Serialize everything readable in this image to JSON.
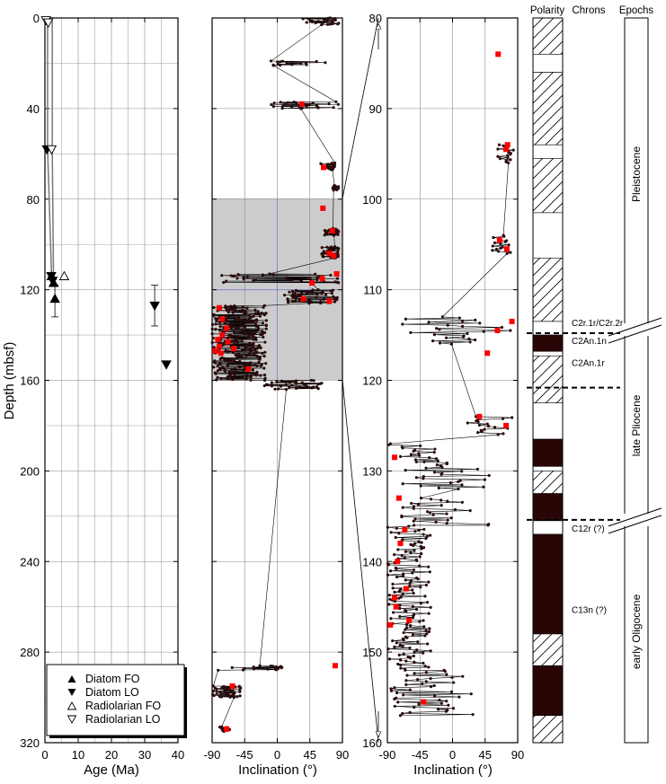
{
  "colors": {
    "data_point": "#2a0a0a",
    "highlight": "#ff0000",
    "shade": "#cccccc",
    "grid": "#888888",
    "shade_grid": "#8888cc",
    "normal_polarity": "#2a0505"
  },
  "chart_data": [
    {
      "type": "scatter",
      "xlabel": "Age (Ma)",
      "ylabel": "Depth (mbsf)",
      "xlim": [
        0,
        40
      ],
      "ylim": [
        320,
        0
      ],
      "x_ticks": [
        "0",
        "10",
        "20",
        "30",
        "40"
      ],
      "y_ticks": [
        "0",
        "40",
        "80",
        "120",
        "160",
        "200",
        "240",
        "280",
        "320"
      ],
      "grid": true,
      "legend_position": "bottom-left",
      "legend": [
        "Diatom FO",
        "Diatom LO",
        "Radiolarian FO",
        "Radiolarian LO"
      ],
      "series": [
        {
          "name": "Diatom FO",
          "marker": "filled-up-triangle",
          "points": [
            {
              "x": 2.0,
              "y": 114
            },
            {
              "x": 2.6,
              "y": 117
            },
            {
              "x": 3.0,
              "y": 124,
              "y_err": [
                118,
                132
              ]
            }
          ]
        },
        {
          "name": "Diatom LO",
          "marker": "filled-down-triangle",
          "points": [
            {
              "x": 0.6,
              "y": 58
            },
            {
              "x": 1.9,
              "y": 114
            },
            {
              "x": 2.3,
              "y": 116
            },
            {
              "x": 33.0,
              "y": 127,
              "y_err": [
                118,
                136
              ]
            },
            {
              "x": 36.5,
              "y": 153
            }
          ]
        },
        {
          "name": "Radiolarian FO",
          "marker": "open-up-triangle",
          "points": [
            {
              "x": 5.8,
              "y": 114
            }
          ]
        },
        {
          "name": "Radiolarian LO",
          "marker": "open-down-triangle",
          "points": [
            {
              "x": 0.3,
              "y": 1
            },
            {
              "x": 1.0,
              "y": 2
            },
            {
              "x": 2.0,
              "y": 58
            }
          ]
        }
      ],
      "age_depth_line": [
        [
          0.8,
          0
        ],
        [
          0.8,
          58
        ],
        [
          2.0,
          114
        ],
        [
          2.6,
          117
        ],
        [
          2.2,
          58
        ],
        [
          2.2,
          0
        ]
      ]
    },
    {
      "type": "scatter",
      "xlabel": "Inclination (°)",
      "xlim": [
        -90,
        90
      ],
      "ylim": [
        320,
        0
      ],
      "x_ticks": [
        "-90",
        "-45",
        "0",
        "45",
        "90"
      ],
      "y_ticks": [
        "0",
        "40",
        "80",
        "120",
        "160",
        "200",
        "240",
        "280",
        "320"
      ],
      "shaded_depth_interval": [
        80,
        160
      ],
      "grid": true,
      "series": [
        {
          "name": "",
          "marker": "small-dot",
          "connected": true,
          "clusters": [
            {
              "depth": [
                0,
                3
              ],
              "incl": [
                35,
                85
              ]
            },
            {
              "depth": [
                19,
                21
              ],
              "incl": [
                -10,
                75
              ]
            },
            {
              "depth": [
                37,
                40
              ],
              "incl": [
                -15,
                85
              ]
            },
            {
              "depth": [
                64,
                67
              ],
              "incl": [
                60,
                80
              ]
            },
            {
              "depth": [
                74,
                76
              ],
              "incl": [
                75,
                85
              ]
            },
            {
              "depth": [
                93,
                96
              ],
              "incl": [
                65,
                85
              ]
            },
            {
              "depth": [
                101,
                106
              ],
              "incl": [
                60,
                85
              ]
            },
            {
              "depth": [
                113,
                117
              ],
              "incl": [
                -85,
                85
              ]
            },
            {
              "depth": [
                120,
                126
              ],
              "incl": [
                10,
                85
              ]
            },
            {
              "depth": [
                127,
                160
              ],
              "incl": [
                -90,
                -15
              ]
            },
            {
              "depth": [
                160,
                164
              ],
              "incl": [
                -20,
                65
              ]
            },
            {
              "depth": [
                286,
                288
              ],
              "incl": [
                -90,
                10
              ]
            },
            {
              "depth": [
                295,
                300
              ],
              "incl": [
                -90,
                -50
              ]
            },
            {
              "depth": [
                313,
                315
              ],
              "incl": [
                -80,
                -65
              ]
            }
          ]
        },
        {
          "name": "",
          "marker": "red-square",
          "points": [
            {
              "x": 34,
              "y": 38
            },
            {
              "x": 64,
              "y": 66
            },
            {
              "x": 63,
              "y": 84
            },
            {
              "x": 76,
              "y": 94
            },
            {
              "x": 72,
              "y": 104
            },
            {
              "x": 78,
              "y": 105
            },
            {
              "x": 82,
              "y": 113
            },
            {
              "x": 62,
              "y": 115
            },
            {
              "x": 48,
              "y": 117
            },
            {
              "x": 36,
              "y": 124
            },
            {
              "x": 72,
              "y": 125
            },
            {
              "x": -80,
              "y": 128
            },
            {
              "x": -76,
              "y": 133
            },
            {
              "x": -70,
              "y": 137
            },
            {
              "x": -76,
              "y": 140
            },
            {
              "x": -82,
              "y": 142
            },
            {
              "x": -68,
              "y": 143
            },
            {
              "x": -80,
              "y": 145
            },
            {
              "x": -60,
              "y": 146
            },
            {
              "x": -86,
              "y": 147
            },
            {
              "x": -78,
              "y": 148
            },
            {
              "x": -40,
              "y": 155
            },
            {
              "x": 80,
              "y": 286
            },
            {
              "x": -62,
              "y": 295
            },
            {
              "x": -70,
              "y": 314
            }
          ]
        }
      ]
    },
    {
      "type": "scatter",
      "xlabel": "Inclination (°)",
      "xlim": [
        -90,
        90
      ],
      "ylim": [
        160,
        80
      ],
      "x_ticks": [
        "-90",
        "-45",
        "0",
        "45",
        "90"
      ],
      "y_ticks": [
        "80",
        "90",
        "100",
        "110",
        "120",
        "130",
        "140",
        "150",
        "160"
      ],
      "grid": true,
      "series": [
        {
          "name": "",
          "marker": "small-dot",
          "connected": true,
          "clusters": [
            {
              "depth": [
                94,
                96
              ],
              "incl": [
                60,
                85
              ]
            },
            {
              "depth": [
                104,
                106
              ],
              "incl": [
                55,
                80
              ]
            },
            {
              "depth": [
                113,
                116
              ],
              "incl": [
                -70,
                85
              ]
            },
            {
              "depth": [
                124,
                126
              ],
              "incl": [
                15,
                85
              ]
            },
            {
              "depth": [
                127,
                129
              ],
              "incl": [
                -90,
                -20
              ]
            },
            {
              "depth": [
                129,
                132
              ],
              "incl": [
                -70,
                55
              ]
            },
            {
              "depth": [
                133,
                136
              ],
              "incl": [
                -90,
                50
              ]
            },
            {
              "depth": [
                136,
                152
              ],
              "incl": [
                -90,
                -30
              ]
            },
            {
              "depth": [
                152,
                157
              ],
              "incl": [
                -90,
                30
              ]
            }
          ]
        },
        {
          "name": "",
          "marker": "red-square",
          "points": [
            {
              "x": 63,
              "y": 84
            },
            {
              "x": 76,
              "y": 94
            },
            {
              "x": 74,
              "y": 94.5
            },
            {
              "x": 65,
              "y": 104.5
            },
            {
              "x": 75,
              "y": 105.5
            },
            {
              "x": 82,
              "y": 113.5
            },
            {
              "x": 62,
              "y": 114.5
            },
            {
              "x": 48,
              "y": 117
            },
            {
              "x": 37,
              "y": 124
            },
            {
              "x": 74,
              "y": 125
            },
            {
              "x": -80,
              "y": 128.5
            },
            {
              "x": -74,
              "y": 133
            },
            {
              "x": -66,
              "y": 136.5
            },
            {
              "x": -72,
              "y": 138
            },
            {
              "x": -76,
              "y": 140
            },
            {
              "x": -64,
              "y": 143
            },
            {
              "x": -80,
              "y": 144
            },
            {
              "x": -78,
              "y": 145
            },
            {
              "x": -60,
              "y": 146.5
            },
            {
              "x": -86,
              "y": 147
            },
            {
              "x": -40,
              "y": 155.5
            }
          ]
        }
      ]
    }
  ],
  "polarity_column": {
    "title": "Polarity",
    "blocks_depth_80_160": [
      {
        "top": 80,
        "bottom": 84,
        "state": "uncertain"
      },
      {
        "top": 84,
        "bottom": 86,
        "state": "reversed"
      },
      {
        "top": 86,
        "bottom": 94,
        "state": "uncertain"
      },
      {
        "top": 94,
        "bottom": 95.5,
        "state": "reversed"
      },
      {
        "top": 95.5,
        "bottom": 101.5,
        "state": "uncertain"
      },
      {
        "top": 101.5,
        "bottom": 106.5,
        "state": "reversed"
      },
      {
        "top": 106.5,
        "bottom": 113.5,
        "state": "uncertain"
      },
      {
        "top": 113.5,
        "bottom": 115,
        "state": "reversed"
      },
      {
        "top": 115,
        "bottom": 116.8,
        "state": "normal"
      },
      {
        "top": 116.8,
        "bottom": 117.3,
        "state": "reversed"
      },
      {
        "top": 117.3,
        "bottom": 122.5,
        "state": "uncertain"
      },
      {
        "top": 122.5,
        "bottom": 126.5,
        "state": "reversed"
      },
      {
        "top": 126.5,
        "bottom": 129.5,
        "state": "normal"
      },
      {
        "top": 129.5,
        "bottom": 130,
        "state": "reversed"
      },
      {
        "top": 130,
        "bottom": 132.5,
        "state": "uncertain"
      },
      {
        "top": 132.5,
        "bottom": 135.5,
        "state": "normal"
      },
      {
        "top": 135.5,
        "bottom": 137,
        "state": "reversed"
      },
      {
        "top": 137,
        "bottom": 148,
        "state": "normal"
      },
      {
        "top": 148,
        "bottom": 151.5,
        "state": "uncertain"
      },
      {
        "top": 151.5,
        "bottom": 157,
        "state": "normal"
      },
      {
        "top": 157,
        "bottom": 160,
        "state": "uncertain"
      }
    ]
  },
  "chrons_column": {
    "title": "Chrons",
    "labels": [
      {
        "text": "C2r.1r/C2r.2r",
        "depth": 113.6
      },
      {
        "text": "C2An.1n",
        "depth": 115.6
      },
      {
        "text": "C2An.1r",
        "depth": 118.0
      },
      {
        "text": "C12r (?)",
        "depth": 136.3
      },
      {
        "text": "C13n (?)",
        "depth": 145.3
      }
    ],
    "dashed_boundaries": [
      114.8,
      120.8,
      135.4
    ]
  },
  "epochs_column": {
    "title": "Epochs",
    "epochs": [
      {
        "name": "Pleistocene",
        "top": 80,
        "bottom": 114.5
      },
      {
        "name": "late Pliocene",
        "top": 114.5,
        "bottom": 135.5
      },
      {
        "name": "early Oligocene",
        "top": 135.5,
        "bottom": 160
      }
    ]
  }
}
